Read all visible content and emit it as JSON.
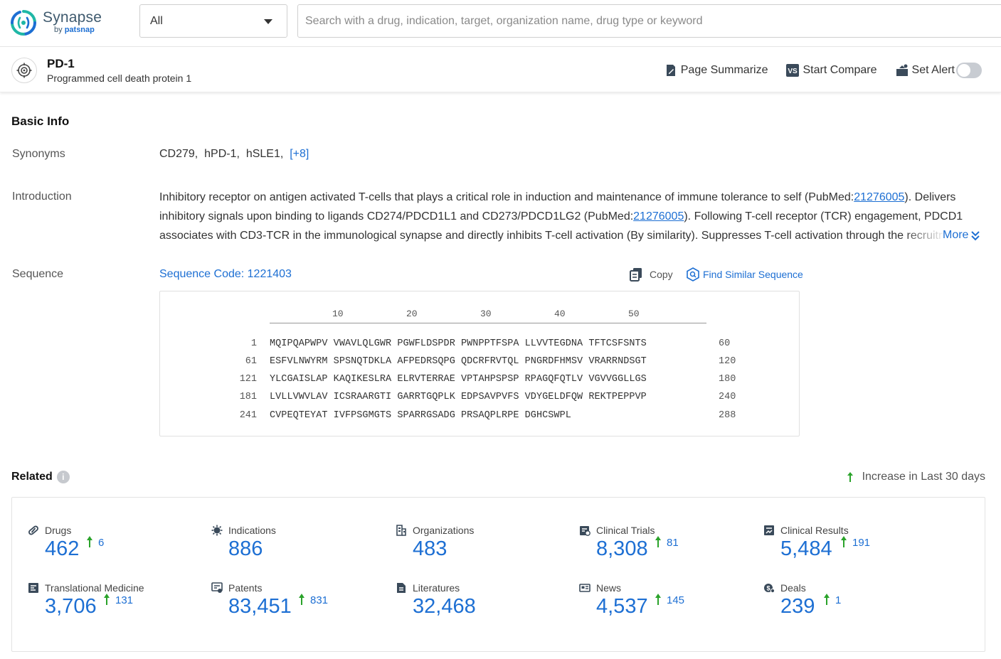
{
  "header": {
    "logo_name": "Synapse",
    "logo_by": "by",
    "logo_brand": "patsnap",
    "scope_value": "All",
    "search_placeholder": "Search with a drug, indication, target, organization name, drug type or keyword"
  },
  "entity": {
    "title": "PD-1",
    "subtitle": "Programmed cell death protein 1",
    "actions": {
      "summarize": "Page Summarize",
      "compare": "Start Compare",
      "alert": "Set Alert"
    },
    "alert_on": false
  },
  "basic_info": {
    "title": "Basic Info",
    "synonyms_label": "Synonyms",
    "synonyms": [
      "CD279,",
      "hPD-1,",
      "hSLE1,"
    ],
    "synonyms_more": "[+8]",
    "intro_label": "Introduction",
    "intro_p1": "Inhibitory receptor on antigen activated T-cells that plays a critical role in induction and maintenance of immune tolerance to self (PubMed:",
    "intro_link1": "21276005",
    "intro_p2": "). Delivers inhibitory signals upon binding to ligands CD274/PDCD1L1 and CD273/PDCD1LG2 (PubMed:",
    "intro_link2": "21276005",
    "intro_p3": "). Following T-cell receptor (TCR) engagement, PDCD1 associates with CD3-TCR in the immunological synapse and directly inhibits T-cell activation (By similarity). Suppresses T-cell activation through the recruitme",
    "more_label": "More",
    "sequence_label": "Sequence",
    "sequence_code": "Sequence Code: 1221403",
    "copy_label": "Copy",
    "find_similar_label": "Find Similar Sequence"
  },
  "sequence": {
    "ticks": [
      "10",
      "20",
      "30",
      "40",
      "50"
    ],
    "rows": [
      {
        "start": "1",
        "chunks": "MQIPQAPWPV VWAVLQLGWR PGWFLDSPDR PWNPPTFSPA LLVVTEGDNA TFTCSFSNTS",
        "end": "60"
      },
      {
        "start": "61",
        "chunks": "ESFVLNWYRM SPSNQTDKLA AFPEDRSQPG QDCRFRVTQL PNGRDFHMSV VRARRNDSGT",
        "end": "120"
      },
      {
        "start": "121",
        "chunks": "YLCGAISLAP KAQIKESLRA ELRVTERRAE VPTAHPSPSP RPAGQFQTLV VGVVGGLLGS",
        "end": "180"
      },
      {
        "start": "181",
        "chunks": "LVLLVWVLAV ICSRAARGTI GARRTGQPLK EDPSAVPVFS VDYGELDFQW REKTPEPPVP",
        "end": "240"
      },
      {
        "start": "241",
        "chunks": "CVPEQTEYAT IVFPSGMGTS SPARRGSADG PRSAQPLRPE DGHCSWPL",
        "end": "288"
      }
    ]
  },
  "related": {
    "title": "Related",
    "info_glyph": "i",
    "increase_note": "Increase in Last 30 days",
    "stats": [
      {
        "label": "Drugs",
        "value": "462",
        "increase": "6",
        "icon": "pill-icon"
      },
      {
        "label": "Indications",
        "value": "886",
        "increase": "",
        "icon": "virus-icon"
      },
      {
        "label": "Organizations",
        "value": "483",
        "increase": "",
        "icon": "building-icon"
      },
      {
        "label": "Clinical Trials",
        "value": "8,308",
        "increase": "81",
        "icon": "clipboard-icon"
      },
      {
        "label": "Clinical Results",
        "value": "5,484",
        "increase": "191",
        "icon": "chart-doc-icon"
      },
      {
        "label": "Translational Medicine",
        "value": "3,706",
        "increase": "131",
        "icon": "flask-doc-icon"
      },
      {
        "label": "Patents",
        "value": "83,451",
        "increase": "831",
        "icon": "patent-icon"
      },
      {
        "label": "Literatures",
        "value": "32,468",
        "increase": "",
        "icon": "document-icon"
      },
      {
        "label": "News",
        "value": "4,537",
        "increase": "145",
        "icon": "newspaper-icon"
      },
      {
        "label": "Deals",
        "value": "239",
        "increase": "1",
        "icon": "deal-icon"
      }
    ]
  },
  "colors": {
    "brand_blue": "#1d6fd3",
    "increase_green": "#2aa32a",
    "logo_teal": "#1fb7a6"
  }
}
